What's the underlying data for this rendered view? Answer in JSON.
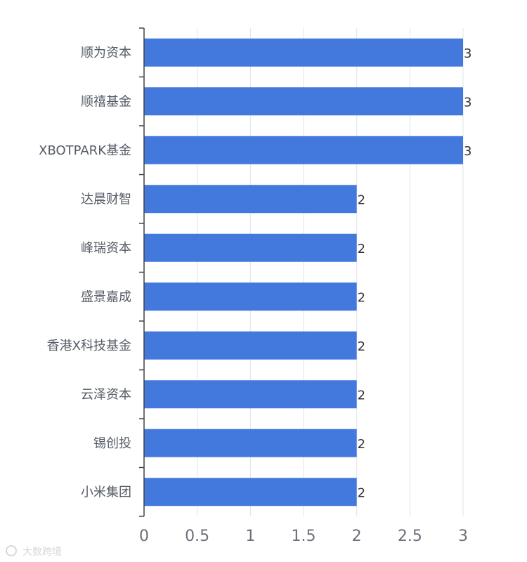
{
  "chart_data": {
    "type": "bar",
    "orientation": "horizontal",
    "categories": [
      "顺为资本",
      "顺禧基金",
      "XBOTPARK基金",
      "达晨财智",
      "峰瑞资本",
      "盛景嘉成",
      "香港X科技基金",
      "云泽资本",
      "锡创投",
      "小米集团"
    ],
    "values": [
      3,
      3,
      3,
      2,
      2,
      2,
      2,
      2,
      2,
      2
    ],
    "xlim": [
      0,
      3
    ],
    "xticks": [
      "0",
      "0.5",
      "1",
      "1.5",
      "2",
      "2.5",
      "3"
    ],
    "grid": "vertical",
    "bar_color": "#4379dd",
    "data_labels": true
  },
  "watermark": {
    "text": "大数跨境"
  }
}
